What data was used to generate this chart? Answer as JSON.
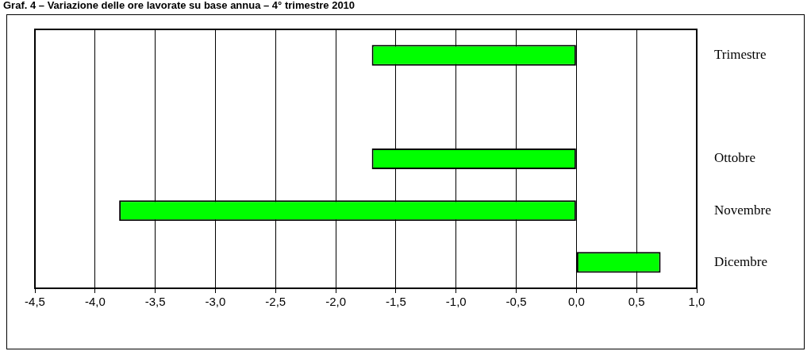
{
  "chart_data": {
    "type": "bar",
    "orientation": "horizontal",
    "title": "Graf. 4 – Variazione delle ore lavorate su base annua – 4° trimestre 2010",
    "categories": [
      "Trimestre",
      null,
      "Ottobre",
      "Novembre",
      "Dicembre"
    ],
    "values": [
      -1.7,
      null,
      -1.7,
      -3.8,
      0.7
    ],
    "color": "#00ff00",
    "xlim": [
      -4.5,
      1.0
    ],
    "xticks": [
      {
        "value": -4.5,
        "label": "-4,5"
      },
      {
        "value": -4,
        "label": "-4,0"
      },
      {
        "value": -3.5,
        "label": "-3,5"
      },
      {
        "value": -3,
        "label": "-3,0"
      },
      {
        "value": -2.5,
        "label": "-2,5"
      },
      {
        "value": -2,
        "label": "-2,0"
      },
      {
        "value": -1.5,
        "label": "-1,5"
      },
      {
        "value": -1,
        "label": "-1,0"
      },
      {
        "value": -0.5,
        "label": "-0,5"
      },
      {
        "value": 0,
        "label": "0,0"
      },
      {
        "value": 0.5,
        "label": "0,5"
      },
      {
        "value": 1,
        "label": "1,0"
      }
    ],
    "grid": "x",
    "legend": false
  }
}
